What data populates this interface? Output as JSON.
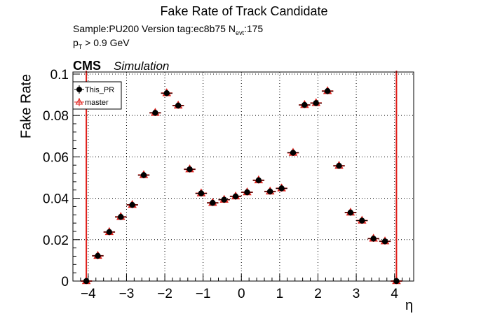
{
  "chart_data": {
    "type": "scatter",
    "title": "Fake Rate of Track Candidate",
    "sample_text": "Sample:PU200   Version tag:ec8b75  N",
    "nevt_subscript": "evt",
    "nevt_value": ":175",
    "pt_p": "p",
    "pt_sub": "T",
    "pt_cut": " > 0.9 GeV",
    "experiment": "CMS",
    "experiment_tag": "Simulation",
    "xlabel": "η",
    "ylabel": "Fake Rate",
    "xlim": [
      -4.4,
      4.5
    ],
    "ylim": [
      0,
      0.101
    ],
    "x_major_ticks": [
      -4,
      -3,
      -2,
      -1,
      0,
      1,
      2,
      3,
      4
    ],
    "x_tick_labels": [
      "−4",
      "−3",
      "−2",
      "−1",
      "0",
      "1",
      "2",
      "3",
      "4"
    ],
    "y_major_ticks": [
      0,
      0.02,
      0.04,
      0.06,
      0.08,
      0.1
    ],
    "y_tick_labels": [
      "0",
      "0.02",
      "0.04",
      "0.06",
      "0.08",
      "0.1"
    ],
    "grid": true,
    "legend_position": "top-left",
    "vertical_lines_x": [
      -4.05,
      4.05
    ],
    "colors": {
      "this_pr": "#000000",
      "master": "#e0201b",
      "frame": "#000000"
    },
    "series": [
      {
        "name": "This_PR",
        "marker": "filled-circle",
        "x": [
          -4.05,
          -3.75,
          -3.45,
          -3.15,
          -2.85,
          -2.55,
          -2.25,
          -1.95,
          -1.65,
          -1.35,
          -1.05,
          -0.75,
          -0.45,
          -0.15,
          0.15,
          0.45,
          0.75,
          1.05,
          1.35,
          1.65,
          1.95,
          2.25,
          2.55,
          2.85,
          3.15,
          3.45,
          3.75,
          4.05
        ],
        "y": [
          0.0,
          0.0122,
          0.0237,
          0.031,
          0.0368,
          0.0512,
          0.0813,
          0.0908,
          0.0848,
          0.054,
          0.0424,
          0.0378,
          0.0393,
          0.0409,
          0.0429,
          0.0487,
          0.0433,
          0.0448,
          0.062,
          0.0851,
          0.086,
          0.0918,
          0.0557,
          0.0331,
          0.0292,
          0.0205,
          0.0192,
          0.0
        ]
      },
      {
        "name": "master",
        "marker": "open-triangle",
        "x": [
          -4.05,
          -3.75,
          -3.45,
          -3.15,
          -2.85,
          -2.55,
          -2.25,
          -1.95,
          -1.65,
          -1.35,
          -1.05,
          -0.75,
          -0.45,
          -0.15,
          0.15,
          0.45,
          0.75,
          1.05,
          1.35,
          1.65,
          1.95,
          2.25,
          2.55,
          2.85,
          3.15,
          3.45,
          3.75,
          4.05
        ],
        "y": [
          0.0,
          0.0122,
          0.0237,
          0.031,
          0.0368,
          0.0512,
          0.0813,
          0.0908,
          0.0848,
          0.054,
          0.0424,
          0.0378,
          0.0393,
          0.0409,
          0.0429,
          0.0487,
          0.0433,
          0.0448,
          0.062,
          0.0851,
          0.086,
          0.0918,
          0.0557,
          0.0331,
          0.0292,
          0.0205,
          0.0192,
          0.0
        ]
      }
    ]
  }
}
